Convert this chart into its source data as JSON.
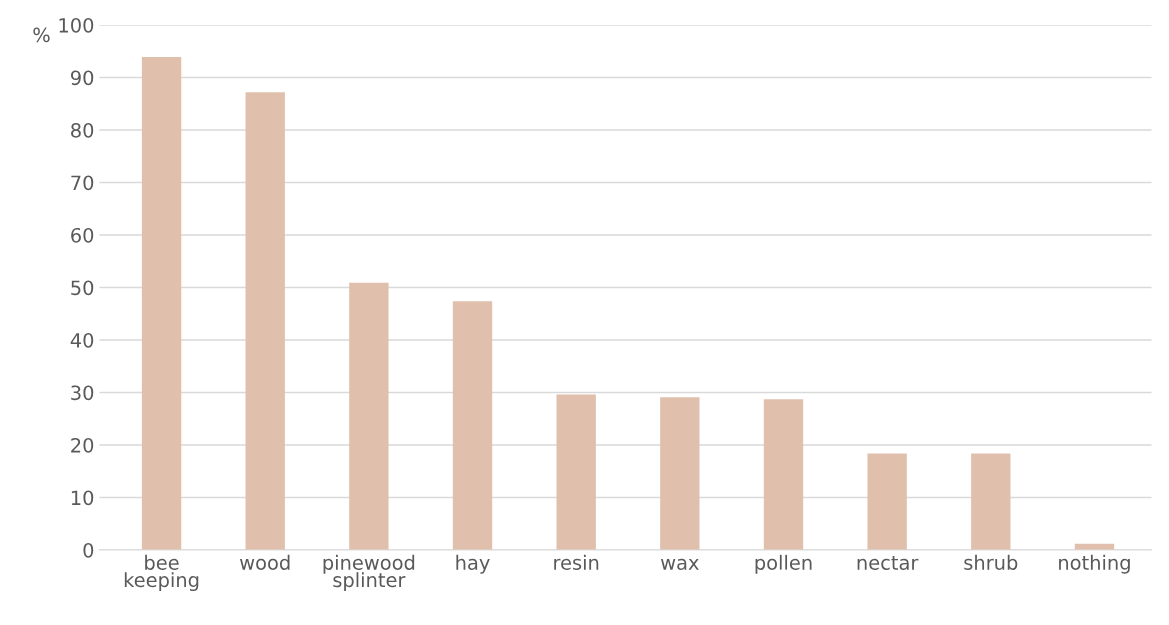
{
  "chart_data": {
    "type": "bar",
    "ylabel": "%",
    "categories": [
      "bee\nkeeping",
      "wood",
      "pinewood\nsplinter",
      "hay",
      "resin",
      "wax",
      "pollen",
      "nectar",
      "shrub",
      "nothing"
    ],
    "values": [
      93.9,
      87.2,
      50.9,
      47.4,
      29.6,
      29.1,
      28.7,
      18.4,
      18.4,
      1.2
    ],
    "color": "#e0c0ad",
    "ylim": [
      0,
      100
    ],
    "yticks": [
      0,
      10,
      20,
      30,
      40,
      50,
      60,
      70,
      80,
      90,
      100
    ],
    "grid": "y"
  }
}
